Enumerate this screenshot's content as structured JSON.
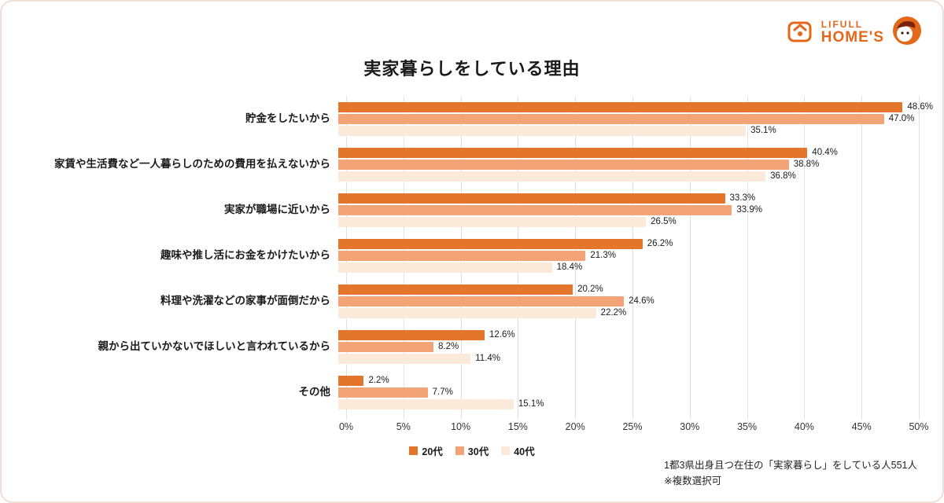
{
  "page": {
    "title": "実家暮らしをしている理由",
    "footnote_line1": "1都3県出身且つ在住の「実家暮らし」をしている人551人",
    "footnote_line2": "※複数選択可"
  },
  "brand": {
    "name_top": "LIFULL",
    "name_bottom": "HOME'S",
    "color": "#e3681a"
  },
  "chart_data": {
    "type": "bar",
    "orientation": "horizontal",
    "title": "実家暮らしをしている理由",
    "categories": [
      "貯金をしたいから",
      "家賃や生活費など一人暮らしのための費用を払えないから",
      "実家が職場に近いから",
      "趣味や推し活にお金をかけたいから",
      "料理や洗濯などの家事が面倒だから",
      "親から出ていかないでほしいと言われているから",
      "その他"
    ],
    "series": [
      {
        "name": "20代",
        "color": "#e4762c",
        "values": [
          48.6,
          40.4,
          33.3,
          26.2,
          20.2,
          12.6,
          2.2
        ]
      },
      {
        "name": "30代",
        "color": "#f2a477",
        "values": [
          47.0,
          38.8,
          33.9,
          21.3,
          24.6,
          8.2,
          7.7
        ]
      },
      {
        "name": "40代",
        "color": "#fbe9da",
        "values": [
          35.1,
          36.8,
          26.5,
          18.4,
          22.2,
          11.4,
          15.1
        ]
      }
    ],
    "xlim": [
      0,
      50
    ],
    "x_ticks": [
      "0%",
      "5%",
      "10%",
      "15%",
      "20%",
      "25%",
      "30%",
      "35%",
      "40%",
      "45%",
      "50%"
    ],
    "value_suffix": "%",
    "grid": true,
    "legend_position": "bottom"
  }
}
